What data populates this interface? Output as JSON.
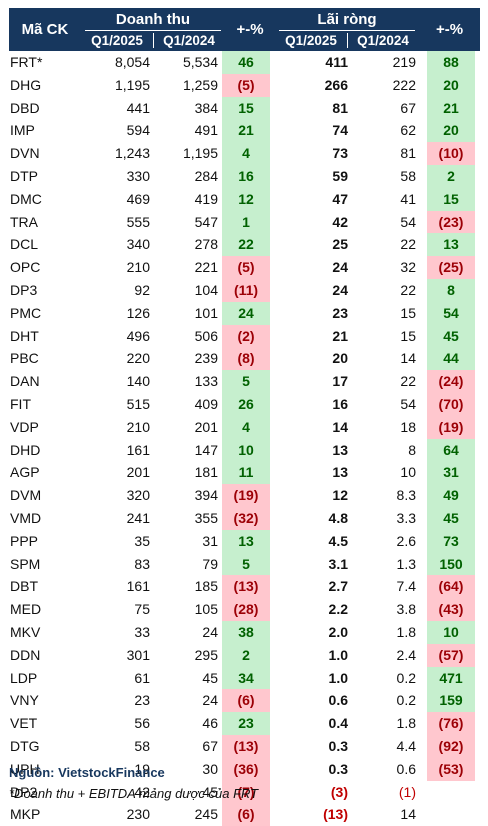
{
  "header": {
    "code": "Mã CK",
    "revenue": "Doanh thu",
    "profit": "Lãi ròng",
    "q1_2025": "Q1/2025",
    "q1_2024": "Q1/2024",
    "change": "+-%"
  },
  "rows": [
    {
      "code": "FRT*",
      "rev25": "8,054",
      "rev24": "5,534",
      "revpct": "46",
      "revsign": "pos",
      "np25": "411",
      "np24": "219",
      "nppct": "88",
      "npsign": "pos"
    },
    {
      "code": "DHG",
      "rev25": "1,195",
      "rev24": "1,259",
      "revpct": "(5)",
      "revsign": "neg",
      "np25": "266",
      "np24": "222",
      "nppct": "20",
      "npsign": "pos"
    },
    {
      "code": "DBD",
      "rev25": "441",
      "rev24": "384",
      "revpct": "15",
      "revsign": "pos",
      "np25": "81",
      "np24": "67",
      "nppct": "21",
      "npsign": "pos"
    },
    {
      "code": "IMP",
      "rev25": "594",
      "rev24": "491",
      "revpct": "21",
      "revsign": "pos",
      "np25": "74",
      "np24": "62",
      "nppct": "20",
      "npsign": "pos"
    },
    {
      "code": "DVN",
      "rev25": "1,243",
      "rev24": "1,195",
      "revpct": "4",
      "revsign": "pos",
      "np25": "73",
      "np24": "81",
      "nppct": "(10)",
      "npsign": "neg"
    },
    {
      "code": "DTP",
      "rev25": "330",
      "rev24": "284",
      "revpct": "16",
      "revsign": "pos",
      "np25": "59",
      "np24": "58",
      "nppct": "2",
      "npsign": "pos"
    },
    {
      "code": "DMC",
      "rev25": "469",
      "rev24": "419",
      "revpct": "12",
      "revsign": "pos",
      "np25": "47",
      "np24": "41",
      "nppct": "15",
      "npsign": "pos"
    },
    {
      "code": "TRA",
      "rev25": "555",
      "rev24": "547",
      "revpct": "1",
      "revsign": "pos",
      "np25": "42",
      "np24": "54",
      "nppct": "(23)",
      "npsign": "neg"
    },
    {
      "code": "DCL",
      "rev25": "340",
      "rev24": "278",
      "revpct": "22",
      "revsign": "pos",
      "np25": "25",
      "np24": "22",
      "nppct": "13",
      "npsign": "pos"
    },
    {
      "code": "OPC",
      "rev25": "210",
      "rev24": "221",
      "revpct": "(5)",
      "revsign": "neg",
      "np25": "24",
      "np24": "32",
      "nppct": "(25)",
      "npsign": "neg"
    },
    {
      "code": "DP3",
      "rev25": "92",
      "rev24": "104",
      "revpct": "(11)",
      "revsign": "neg",
      "np25": "24",
      "np24": "22",
      "nppct": "8",
      "npsign": "pos"
    },
    {
      "code": "PMC",
      "rev25": "126",
      "rev24": "101",
      "revpct": "24",
      "revsign": "pos",
      "np25": "23",
      "np24": "15",
      "nppct": "54",
      "npsign": "pos"
    },
    {
      "code": "DHT",
      "rev25": "496",
      "rev24": "506",
      "revpct": "(2)",
      "revsign": "neg",
      "np25": "21",
      "np24": "15",
      "nppct": "45",
      "npsign": "pos"
    },
    {
      "code": "PBC",
      "rev25": "220",
      "rev24": "239",
      "revpct": "(8)",
      "revsign": "neg",
      "np25": "20",
      "np24": "14",
      "nppct": "44",
      "npsign": "pos"
    },
    {
      "code": "DAN",
      "rev25": "140",
      "rev24": "133",
      "revpct": "5",
      "revsign": "pos",
      "np25": "17",
      "np24": "22",
      "nppct": "(24)",
      "npsign": "neg"
    },
    {
      "code": "FIT",
      "rev25": "515",
      "rev24": "409",
      "revpct": "26",
      "revsign": "pos",
      "np25": "16",
      "np24": "54",
      "nppct": "(70)",
      "npsign": "neg"
    },
    {
      "code": "VDP",
      "rev25": "210",
      "rev24": "201",
      "revpct": "4",
      "revsign": "pos",
      "np25": "14",
      "np24": "18",
      "nppct": "(19)",
      "npsign": "neg"
    },
    {
      "code": "DHD",
      "rev25": "161",
      "rev24": "147",
      "revpct": "10",
      "revsign": "pos",
      "np25": "13",
      "np24": "8",
      "nppct": "64",
      "npsign": "pos"
    },
    {
      "code": "AGP",
      "rev25": "201",
      "rev24": "181",
      "revpct": "11",
      "revsign": "pos",
      "np25": "13",
      "np24": "10",
      "nppct": "31",
      "npsign": "pos"
    },
    {
      "code": "DVM",
      "rev25": "320",
      "rev24": "394",
      "revpct": "(19)",
      "revsign": "neg",
      "np25": "12",
      "np24": "8.3",
      "nppct": "49",
      "npsign": "pos"
    },
    {
      "code": "VMD",
      "rev25": "241",
      "rev24": "355",
      "revpct": "(32)",
      "revsign": "neg",
      "np25": "4.8",
      "np24": "3.3",
      "nppct": "45",
      "npsign": "pos"
    },
    {
      "code": "PPP",
      "rev25": "35",
      "rev24": "31",
      "revpct": "13",
      "revsign": "pos",
      "np25": "4.5",
      "np24": "2.6",
      "nppct": "73",
      "npsign": "pos"
    },
    {
      "code": "SPM",
      "rev25": "83",
      "rev24": "79",
      "revpct": "5",
      "revsign": "pos",
      "np25": "3.1",
      "np24": "1.3",
      "nppct": "150",
      "npsign": "pos"
    },
    {
      "code": "DBT",
      "rev25": "161",
      "rev24": "185",
      "revpct": "(13)",
      "revsign": "neg",
      "np25": "2.7",
      "np24": "7.4",
      "nppct": "(64)",
      "npsign": "neg"
    },
    {
      "code": "MED",
      "rev25": "75",
      "rev24": "105",
      "revpct": "(28)",
      "revsign": "neg",
      "np25": "2.2",
      "np24": "3.8",
      "nppct": "(43)",
      "npsign": "neg"
    },
    {
      "code": "MKV",
      "rev25": "33",
      "rev24": "24",
      "revpct": "38",
      "revsign": "pos",
      "np25": "2.0",
      "np24": "1.8",
      "nppct": "10",
      "npsign": "pos"
    },
    {
      "code": "DDN",
      "rev25": "301",
      "rev24": "295",
      "revpct": "2",
      "revsign": "pos",
      "np25": "1.0",
      "np24": "2.4",
      "nppct": "(57)",
      "npsign": "neg"
    },
    {
      "code": "LDP",
      "rev25": "61",
      "rev24": "45",
      "revpct": "34",
      "revsign": "pos",
      "np25": "1.0",
      "np24": "0.2",
      "nppct": "471",
      "npsign": "pos"
    },
    {
      "code": "VNY",
      "rev25": "23",
      "rev24": "24",
      "revpct": "(6)",
      "revsign": "neg",
      "np25": "0.6",
      "np24": "0.2",
      "nppct": "159",
      "npsign": "pos"
    },
    {
      "code": "VET",
      "rev25": "56",
      "rev24": "46",
      "revpct": "23",
      "revsign": "pos",
      "np25": "0.4",
      "np24": "1.8",
      "nppct": "(76)",
      "npsign": "neg"
    },
    {
      "code": "DTG",
      "rev25": "58",
      "rev24": "67",
      "revpct": "(13)",
      "revsign": "neg",
      "np25": "0.3",
      "np24": "4.4",
      "nppct": "(92)",
      "npsign": "neg"
    },
    {
      "code": "UPH",
      "rev25": "19",
      "rev24": "30",
      "revpct": "(36)",
      "revsign": "neg",
      "np25": "0.3",
      "np24": "0.6",
      "nppct": "(53)",
      "npsign": "neg"
    },
    {
      "code": "DP2",
      "rev25": "42",
      "rev24": "45",
      "revpct": "(7)",
      "revsign": "neg",
      "np25": "(3)",
      "np24": "(1)",
      "nppct": "",
      "npsign": "none",
      "np25red": true,
      "np24red": true
    },
    {
      "code": "MKP",
      "rev25": "230",
      "rev24": "245",
      "revpct": "(6)",
      "revsign": "neg",
      "np25": "(13)",
      "np24": "14",
      "nppct": "",
      "npsign": "none",
      "np25red": true,
      "np24red": false
    }
  ],
  "footer": {
    "source": "Nguồn: VietstockFinance",
    "note": "*Doanh thu + EBITDA mảng dược của FRT"
  },
  "colors": {
    "header_bg": "#17375e",
    "positive_bg": "#c6efce",
    "positive_text": "#006100",
    "negative_bg": "#ffc7ce",
    "negative_text": "#9c0006"
  }
}
